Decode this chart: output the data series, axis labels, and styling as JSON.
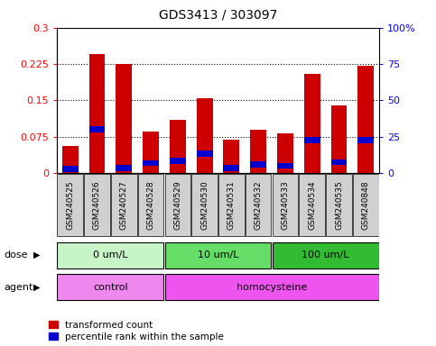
{
  "title": "GDS3413 / 303097",
  "samples": [
    "GSM240525",
    "GSM240526",
    "GSM240527",
    "GSM240528",
    "GSM240529",
    "GSM240530",
    "GSM240531",
    "GSM240532",
    "GSM240533",
    "GSM240534",
    "GSM240535",
    "GSM240848"
  ],
  "red_values": [
    0.055,
    0.245,
    0.225,
    0.085,
    0.11,
    0.155,
    0.068,
    0.09,
    0.082,
    0.205,
    0.14,
    0.222
  ],
  "blue_values": [
    0.008,
    0.09,
    0.01,
    0.02,
    0.025,
    0.04,
    0.01,
    0.018,
    0.015,
    0.068,
    0.022,
    0.068
  ],
  "ylim_left": [
    0,
    0.3
  ],
  "ylim_right": [
    0,
    100
  ],
  "yticks_left": [
    0,
    0.075,
    0.15,
    0.225,
    0.3
  ],
  "ytick_labels_left": [
    "0",
    "0.075",
    "0.15",
    "0.225",
    "0.3"
  ],
  "yticks_right": [
    0,
    25,
    50,
    75,
    100
  ],
  "ytick_labels_right": [
    "0",
    "25",
    "50",
    "75",
    "100%"
  ],
  "dose_groups": [
    {
      "label": "0 um/L",
      "start": 0,
      "end": 4,
      "color": "#c8f5c8"
    },
    {
      "label": "10 um/L",
      "start": 4,
      "end": 8,
      "color": "#66dd66"
    },
    {
      "label": "100 um/L",
      "start": 8,
      "end": 12,
      "color": "#33bb33"
    }
  ],
  "agent_groups": [
    {
      "label": "control",
      "start": 0,
      "end": 4,
      "color": "#ee88ee"
    },
    {
      "label": "homocysteine",
      "start": 4,
      "end": 12,
      "color": "#ee55ee"
    }
  ],
  "bar_color_red": "#cc0000",
  "bar_color_blue": "#0000cc",
  "bar_width": 0.6,
  "dose_label": "dose",
  "agent_label": "agent",
  "legend_red": "transformed count",
  "legend_blue": "percentile rank within the sample",
  "tick_bg_color": "#d0d0d0"
}
